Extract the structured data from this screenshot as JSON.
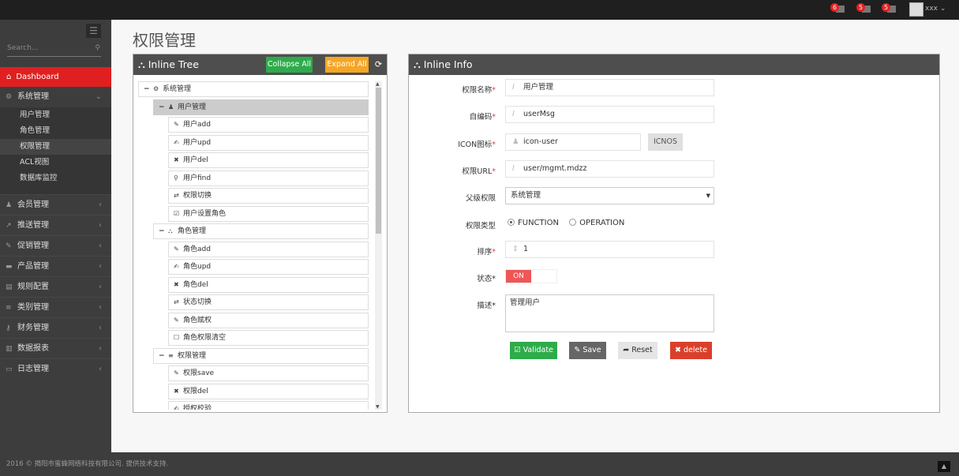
{
  "header": {
    "notifications": [
      {
        "count": "6",
        "icon": "bell-icon"
      },
      {
        "count": "5",
        "icon": "envelope-icon"
      },
      {
        "count": "5",
        "icon": "tasks-icon"
      }
    ],
    "username": "xxx"
  },
  "sidebar": {
    "search_placeholder": "Search...",
    "dashboard": "Dashboard",
    "system": {
      "label": "系统管理",
      "children": [
        "用户管理",
        "角色管理",
        "权限管理",
        "ACL视图",
        "数据库监控"
      ],
      "active": "权限管理"
    },
    "items": [
      {
        "label": "会员管理",
        "icon": "user-icon"
      },
      {
        "label": "推送管理",
        "icon": "share-icon"
      },
      {
        "label": "促销管理",
        "icon": "pencil-icon"
      },
      {
        "label": "产品管理",
        "icon": "product-icon"
      },
      {
        "label": "规则配置",
        "icon": "list-alt-icon"
      },
      {
        "label": "类别管理",
        "icon": "list-icon"
      },
      {
        "label": "财务管理",
        "icon": "key-icon"
      },
      {
        "label": "数据报表",
        "icon": "bar-chart-icon"
      },
      {
        "label": "日志管理",
        "icon": "credit-card-icon"
      }
    ]
  },
  "page": {
    "title": "权限管理"
  },
  "tree_panel": {
    "title": "Inline Tree",
    "collapse_all": "Collapse All",
    "expand_all": "Expand All",
    "nodes": [
      {
        "label": "系统管理",
        "level": 0,
        "icon": "cogs-icon",
        "toggle": "−"
      },
      {
        "label": "用户管理",
        "level": 1,
        "icon": "user-icon",
        "toggle": "−",
        "selected": true
      },
      {
        "label": "用户add",
        "level": 2,
        "icon": "pencil-icon"
      },
      {
        "label": "用户upd",
        "level": 2,
        "icon": "edit-icon"
      },
      {
        "label": "用户del",
        "level": 2,
        "icon": "remove-icon"
      },
      {
        "label": "用户find",
        "level": 2,
        "icon": "search-icon"
      },
      {
        "label": "权限切换",
        "level": 2,
        "icon": "retweet-icon"
      },
      {
        "label": "用户设置角色",
        "level": 2,
        "icon": "check-icon"
      },
      {
        "label": "角色管理",
        "level": 1,
        "icon": "sitemap-icon",
        "toggle": "−"
      },
      {
        "label": "角色add",
        "level": 2,
        "icon": "pencil-icon"
      },
      {
        "label": "角色upd",
        "level": 2,
        "icon": "edit-icon"
      },
      {
        "label": "角色del",
        "level": 2,
        "icon": "remove-icon"
      },
      {
        "label": "状态切换",
        "level": 2,
        "icon": "retweet-icon"
      },
      {
        "label": "角色赋权",
        "level": 2,
        "icon": "pencil-icon"
      },
      {
        "label": "角色权限清空",
        "level": 2,
        "icon": "square-icon"
      },
      {
        "label": "权限管理",
        "level": 1,
        "icon": "list-icon",
        "toggle": "−"
      },
      {
        "label": "权限save",
        "level": 2,
        "icon": "pencil-icon"
      },
      {
        "label": "权限del",
        "level": 2,
        "icon": "remove-icon"
      },
      {
        "label": "授权校验",
        "level": 2,
        "icon": "edit-icon"
      }
    ]
  },
  "info_panel": {
    "title": "Inline Info",
    "fields": {
      "name": {
        "label": "权限名称",
        "value": "用户管理"
      },
      "code": {
        "label": "自编码",
        "value": "userMsg"
      },
      "icon": {
        "label": "ICON图标",
        "value": "icon-user",
        "button": "ICNOS"
      },
      "url": {
        "label": "权限URL",
        "value": "user/mgmt.mdzz"
      },
      "parent": {
        "label": "父级权限",
        "value": "系统管理"
      },
      "type": {
        "label": "权限类型",
        "options": [
          "FUNCTION",
          "OPERATION"
        ],
        "selected": "FUNCTION"
      },
      "order": {
        "label": "排序",
        "value": "1"
      },
      "status": {
        "label": "状态",
        "value": "ON"
      },
      "desc": {
        "label": "描述",
        "value": "管理用户"
      }
    },
    "buttons": {
      "validate": "Validate",
      "save": "Save",
      "reset": "Reset",
      "delete": "delete"
    },
    "colors": {
      "validate": "#2eab4a",
      "save": "#666666",
      "reset": "#e5e5e5",
      "delete": "#d9402b",
      "toggle_on": "#f05656"
    }
  },
  "footer": {
    "text": "2016 © 揭阳市蜜蜂网络科技有限公司. 提供技术支持."
  }
}
